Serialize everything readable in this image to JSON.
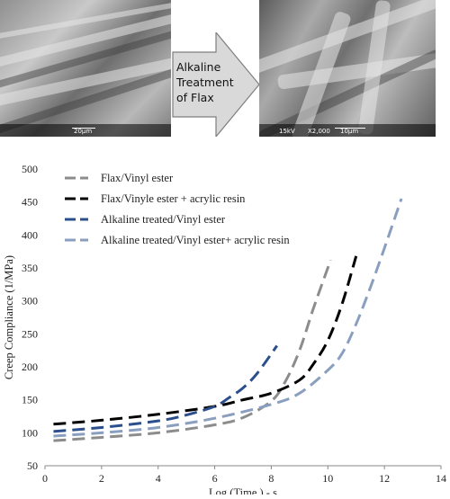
{
  "sem_left": {
    "scale_label": "20µm"
  },
  "sem_right": {
    "voltage": "15kV",
    "magnification": "X2,000",
    "scale_label": "10µm"
  },
  "arrow": {
    "lines": [
      "Alkaline",
      "Treatment",
      "of Flax"
    ]
  },
  "colors": {
    "flax_vinyl": "#8c8c8c",
    "flax_vinyl_acrylic": "#000000",
    "alk_vinyl": "#2b4f8c",
    "alk_vinyl_acrylic": "#8a9fbf"
  },
  "chart_data": {
    "type": "line",
    "xlabel": "Log (Time ) - s",
    "ylabel": "Creep Compliance (1/MPa)",
    "xlim": [
      0,
      14
    ],
    "ylim": [
      50,
      500
    ],
    "xticks": [
      0,
      2,
      4,
      6,
      8,
      10,
      12,
      14
    ],
    "yticks": [
      50,
      100,
      150,
      200,
      250,
      300,
      350,
      400,
      450,
      500
    ],
    "legend_position": "top-left",
    "line_style": "dashed",
    "series": [
      {
        "name": "Flax/Vinyl ester",
        "color": "#8c8c8c",
        "x": [
          0.3,
          2,
          4,
          6,
          7,
          8,
          8.5,
          9,
          9.5,
          10.1
        ],
        "y": [
          88,
          93,
          100,
          112,
          123,
          148,
          178,
          225,
          290,
          362
        ]
      },
      {
        "name": "Flax/Vinyle ester + acrylic resin",
        "color": "#000000",
        "x": [
          0.3,
          2,
          4,
          6,
          7,
          8,
          9,
          9.5,
          10,
          10.5,
          11
        ],
        "y": [
          113,
          119,
          128,
          140,
          150,
          160,
          180,
          205,
          240,
          295,
          368
        ]
      },
      {
        "name": "Alkaline treated/Vinyl ester",
        "color": "#2b4f8c",
        "x": [
          0.3,
          2,
          4,
          5,
          6,
          6.5,
          7,
          7.5,
          8.2
        ],
        "y": [
          102,
          108,
          118,
          127,
          140,
          153,
          168,
          190,
          232
        ]
      },
      {
        "name": "Alkaline treated/Vinyl ester+ acrylic resin",
        "color": "#8a9fbf",
        "x": [
          0.3,
          2,
          4,
          6,
          8,
          9,
          10,
          10.5,
          11,
          11.5,
          12,
          12.6
        ],
        "y": [
          95,
          100,
          108,
          122,
          143,
          160,
          195,
          220,
          265,
          320,
          380,
          455
        ]
      }
    ]
  }
}
